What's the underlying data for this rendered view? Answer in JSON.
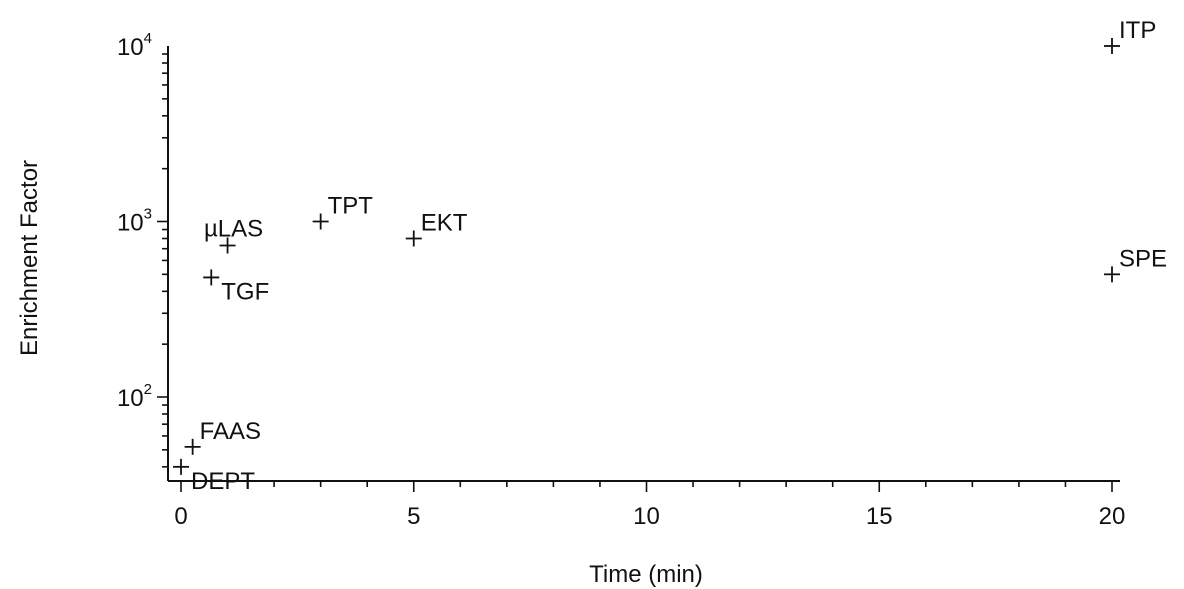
{
  "chart_data": {
    "type": "scatter",
    "title": "",
    "xlabel": "Time (min)",
    "ylabel": "Enrichment Factor",
    "xlim": [
      -0.3,
      21
    ],
    "ylim": [
      33,
      10000
    ],
    "yscale": "log",
    "grid": false,
    "legend": "none",
    "x_ticks": [
      {
        "value": 0,
        "label": "0"
      },
      {
        "value": 5,
        "label": "5"
      },
      {
        "value": 10,
        "label": "10"
      },
      {
        "value": 15,
        "label": "15"
      },
      {
        "value": 20,
        "label": "20"
      }
    ],
    "y_ticks": [
      {
        "value": 100,
        "base": "10",
        "exp": "2"
      },
      {
        "value": 1000,
        "base": "10",
        "exp": "3"
      },
      {
        "value": 10000,
        "base": "10",
        "exp": "4"
      }
    ],
    "points": [
      {
        "label": "ITP",
        "x": 20,
        "y": 10000,
        "label_pos": "above-right"
      },
      {
        "label": "µLAS",
        "x": 1,
        "y": 730,
        "label_pos": "above-left"
      },
      {
        "label": "TPT",
        "x": 3,
        "y": 1000,
        "label_pos": "above-right"
      },
      {
        "label": "EKT",
        "x": 5,
        "y": 800,
        "label_pos": "above-right"
      },
      {
        "label": "TGF",
        "x": 0.65,
        "y": 480,
        "label_pos": "below-right"
      },
      {
        "label": "SPE",
        "x": 20,
        "y": 500,
        "label_pos": "above-right"
      },
      {
        "label": "FAAS",
        "x": 0.25,
        "y": 52,
        "label_pos": "above-right"
      },
      {
        "label": "DEPT",
        "x": 0,
        "y": 40,
        "label_pos": "below-right"
      }
    ],
    "series": [
      {
        "marker": "+",
        "color": "#111111"
      }
    ]
  }
}
